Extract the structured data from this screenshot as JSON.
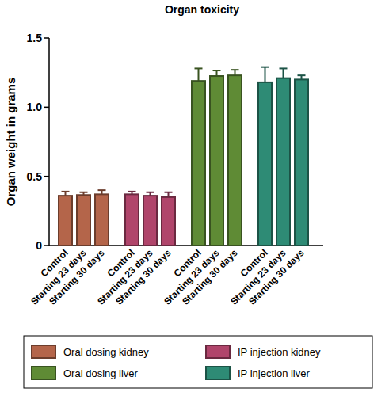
{
  "chart_data": {
    "type": "bar",
    "title": "Organ toxicity",
    "y_label": "Organ weight in grams",
    "categories": [
      "Control",
      "Starting 23 days",
      "Starting 30 days"
    ],
    "series": [
      {
        "name": "Oral dosing kidney",
        "color": "#b4654a",
        "values": [
          0.36,
          0.365,
          0.37
        ],
        "errors": [
          0.03,
          0.02,
          0.03
        ]
      },
      {
        "name": "IP injection kidney",
        "color": "#b0456b",
        "values": [
          0.37,
          0.36,
          0.35
        ],
        "errors": [
          0.02,
          0.025,
          0.035
        ]
      },
      {
        "name": "Oral dosing liver",
        "color": "#5f8b35",
        "values": [
          1.19,
          1.225,
          1.23
        ],
        "errors": [
          0.09,
          0.04,
          0.04
        ]
      },
      {
        "name": "IP injection liver",
        "color": "#2e8b75",
        "values": [
          1.18,
          1.21,
          1.2
        ],
        "errors": [
          0.11,
          0.07,
          0.03
        ]
      }
    ],
    "ylim": [
      0,
      1.5
    ],
    "yticks": [
      0,
      0.5,
      {
        "value": 1,
        "label": "1.0"
      },
      1.5
    ],
    "legend": "bottom"
  }
}
